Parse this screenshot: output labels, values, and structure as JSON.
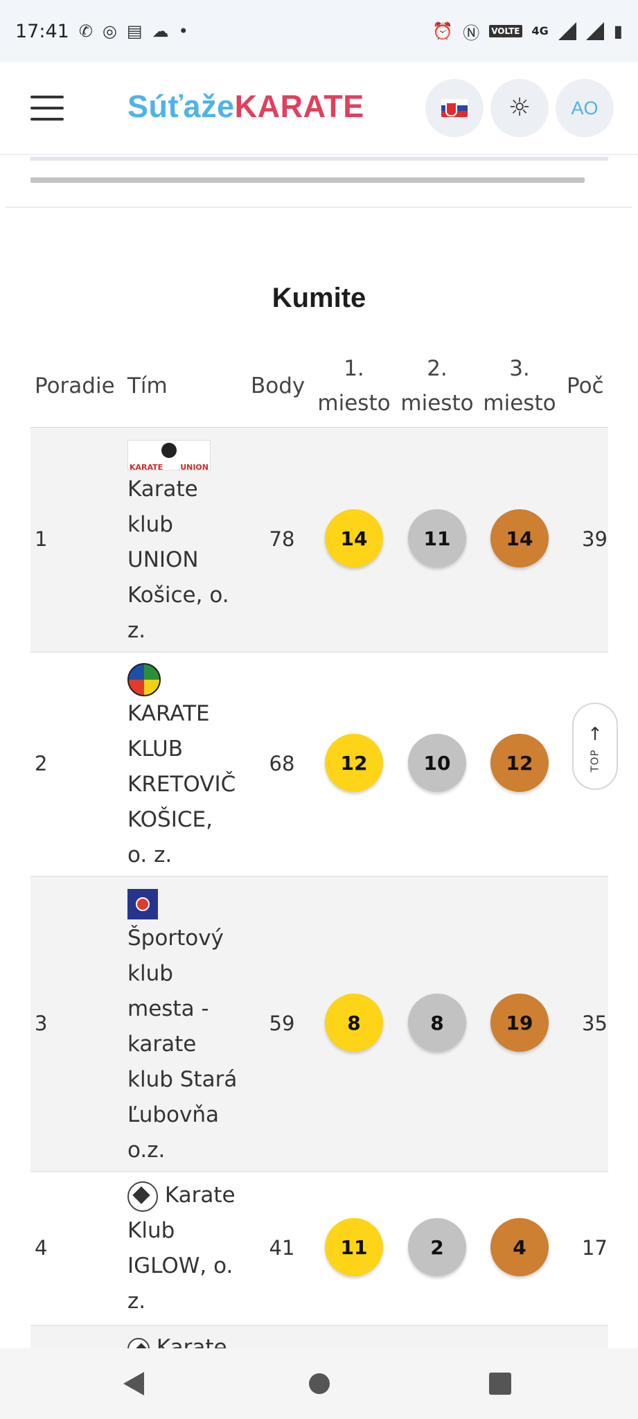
{
  "status_bar": {
    "time": "17:41",
    "left_icons": [
      "whatsapp-icon",
      "instagram-icon",
      "cast-icon",
      "cloud-icon",
      "dot-icon"
    ],
    "right_icons": [
      "alarm-icon",
      "nfc-icon",
      "volte-icon",
      "4g-icon",
      "signal-icon",
      "signal-icon",
      "battery-icon"
    ],
    "volte_label": "VOLTE",
    "network_label": "4G"
  },
  "header": {
    "logo_part1": "Súťaže",
    "logo_part2": "KARATE",
    "language_flag": "slovakia-flag-icon",
    "theme_icon": "sun-icon",
    "avatar_initials": "AO",
    "colors": {
      "logo_blue": "#4fb3e8",
      "logo_red": "#e0405e"
    }
  },
  "section": {
    "title": "Kumite",
    "columns": {
      "rank": "Poradie",
      "team": "Tím",
      "points": "Body",
      "first_num": "1.",
      "first_word": "miesto",
      "second_num": "2.",
      "second_word": "miesto",
      "third_num": "3.",
      "third_word": "miesto",
      "count": "Poč"
    },
    "rows": [
      {
        "rank": "1",
        "team": "Karate klub UNION Košice, o. z.",
        "points": "78",
        "gold": "14",
        "silver": "11",
        "bronze": "14",
        "count": "39"
      },
      {
        "rank": "2",
        "team": "KARATE KLUB KRETOVIČ KOŠICE, o. z.",
        "points": "68",
        "gold": "12",
        "silver": "10",
        "bronze": "12",
        "count": ""
      },
      {
        "rank": "3",
        "team": "Športový klub mesta - karate klub Stará Ľubovňa o.z.",
        "points": "59",
        "gold": "8",
        "silver": "8",
        "bronze": "19",
        "count": "35"
      },
      {
        "rank": "4",
        "team": "Karate Klub IGLOW, o. z.",
        "points": "41",
        "gold": "11",
        "silver": "2",
        "bronze": "4",
        "count": "17"
      },
      {
        "rank": "",
        "team": "Karate",
        "points": "",
        "gold": "",
        "silver": "",
        "bronze": "",
        "count": ""
      }
    ],
    "medal_colors": {
      "gold": "#fdd417",
      "silver": "#c2c2c2",
      "bronze": "#cd7f32"
    }
  },
  "scroll_top": {
    "label": "TOP"
  },
  "nav_bar": {
    "icons": [
      "back-icon",
      "home-icon",
      "recents-icon"
    ]
  }
}
